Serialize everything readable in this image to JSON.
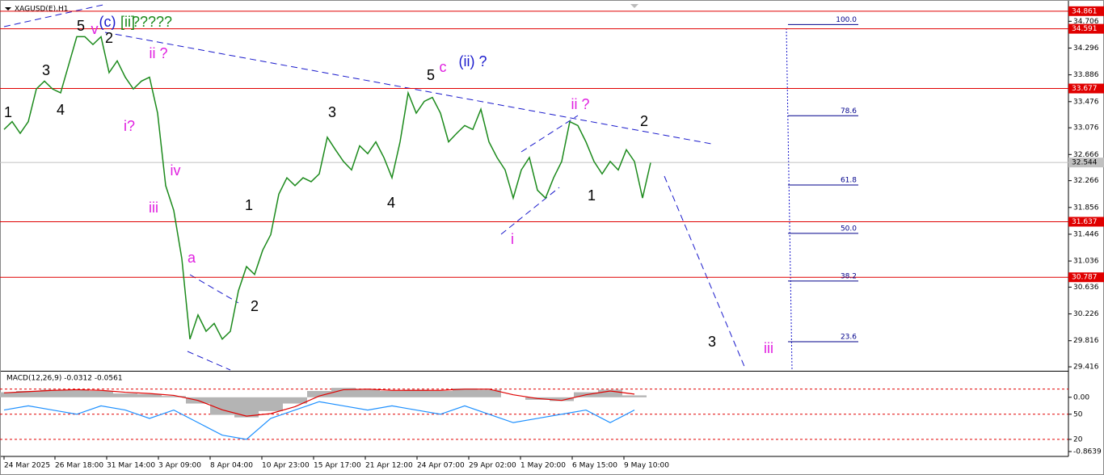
{
  "chart_data": [
    {
      "type": "line",
      "title": "XAGUSD(E),H1",
      "ylim": [
        29.38,
        34.97
      ],
      "yticks": [
        34.706,
        34.296,
        33.886,
        33.476,
        33.076,
        32.666,
        32.266,
        31.856,
        31.446,
        31.036,
        30.636,
        30.226,
        29.816,
        29.416
      ],
      "xticks": [
        {
          "value": 0,
          "label": "24 Mar 2025"
        },
        {
          "value": 6.3,
          "label": "26 Mar 18:00"
        },
        {
          "value": 12.7,
          "label": "31 Mar 14:00"
        },
        {
          "value": 19.1,
          "label": "3 Apr 09:00"
        },
        {
          "value": 25.5,
          "label": "8 Apr 04:00"
        },
        {
          "value": 31.9,
          "label": "10 Apr 23:00"
        },
        {
          "value": 38.3,
          "label": "15 Apr 17:00"
        },
        {
          "value": 44.7,
          "label": "21 Apr 12:00"
        },
        {
          "value": 51.1,
          "label": "24 Apr 07:00"
        },
        {
          "value": 57.5,
          "label": "29 Apr 02:00"
        },
        {
          "value": 63.9,
          "label": "1 May 20:00"
        },
        {
          "value": 70.3,
          "label": "6 May 15:00"
        },
        {
          "value": 76.7,
          "label": "9 May 10:00"
        }
      ],
      "series": [
        {
          "color": "#1c8a1c",
          "values": [
            33.05,
            33.17,
            32.99,
            33.17,
            33.67,
            33.79,
            33.67,
            33.61,
            34.04,
            34.47,
            34.47,
            34.35,
            34.47,
            33.92,
            34.1,
            33.85,
            33.67,
            33.79,
            33.85,
            33.3,
            32.19,
            31.81,
            31.07,
            29.84,
            30.21,
            29.96,
            30.08,
            29.84,
            29.96,
            30.58,
            30.95,
            30.83,
            31.2,
            31.44,
            32.06,
            32.31,
            32.19,
            32.31,
            32.25,
            32.37,
            32.93,
            32.74,
            32.56,
            32.43,
            32.8,
            32.68,
            32.86,
            32.62,
            32.31,
            32.86,
            33.61,
            33.3,
            33.48,
            33.54,
            33.3,
            32.86,
            32.99,
            33.11,
            33.05,
            33.36,
            32.86,
            32.62,
            32.43,
            32.0,
            32.43,
            32.62,
            32.12,
            32.0,
            32.31,
            32.56,
            33.17,
            33.11,
            32.86,
            32.56,
            32.37,
            32.56,
            32.43,
            32.74,
            32.56,
            32.0,
            32.54
          ]
        }
      ],
      "levels": {
        "color": "#e00000",
        "values": [
          34.861,
          34.591,
          33.677,
          31.637,
          30.787
        ]
      },
      "current": 32.544,
      "fib": {
        "color": "#00008b",
        "ratios": [
          {
            "value": 100,
            "label": "100.0"
          },
          78.6,
          61.8,
          {
            "value": 50,
            "label": "50.0"
          },
          38.2,
          23.6
        ],
        "prices": [
          34.656,
          33.26,
          32.2,
          31.46,
          30.73,
          29.8
        ]
      },
      "annotations": [
        {
          "text": "(c)",
          "color": "#1a1acc"
        },
        {
          "text": "[ii]",
          "color": "#1a8a1a"
        },
        {
          "text": "?????",
          "color": "#1a8a1a"
        },
        {
          "text": "1",
          "color": "#000000"
        },
        {
          "text": "3",
          "color": "#000000"
        },
        {
          "text": "4",
          "color": "#000000"
        },
        {
          "text": "5",
          "color": "#000000"
        },
        {
          "text": "v",
          "color": "#e020e0"
        },
        {
          "text": "2",
          "color": "#000000"
        },
        {
          "text": "ii ?",
          "color": "#e020e0"
        },
        {
          "text": "i?",
          "color": "#e020e0"
        },
        {
          "text": "iv",
          "color": "#e020e0"
        },
        {
          "text": "iii",
          "color": "#e020e0"
        },
        {
          "text": "a",
          "color": "#e020e0"
        },
        {
          "text": "1",
          "color": "#000000"
        },
        {
          "text": "2",
          "color": "#000000"
        },
        {
          "text": "3",
          "color": "#000000"
        },
        {
          "text": "4",
          "color": "#000000"
        },
        {
          "text": "5",
          "color": "#000000"
        },
        {
          "text": "c",
          "color": "#e020e0"
        },
        {
          "text": "(ii) ?",
          "color": "#1a1acc"
        },
        {
          "text": "ii ?",
          "color": "#e020e0"
        },
        {
          "text": "2",
          "color": "#000000"
        },
        {
          "text": "1",
          "color": "#000000"
        },
        {
          "text": "i",
          "color": "#e020e0"
        },
        {
          "text": "3",
          "color": "#000000"
        },
        {
          "text": "iii",
          "color": "#e020e0"
        }
      ]
    },
    {
      "type": "macd",
      "title": "MACD(12,26,9) -0.0312 -0.0561",
      "ylim": [
        -0.89,
        0.37
      ],
      "yticks": [
        {
          "value": 0,
          "label": "0.00"
        },
        -0.8639
      ],
      "y2lim": [
        3.5,
        98
      ],
      "y2ticks": [
        50,
        20
      ],
      "levels": [
        80,
        50,
        20
      ],
      "series": [
        {
          "color": "#b4b4b4",
          "values": [
            0.08,
            0.1,
            0.12,
            0.12,
            0.1,
            0.06,
            0.05,
            0.02,
            -0.1,
            -0.28,
            -0.32,
            -0.22,
            -0.1,
            0.1,
            0.15,
            0.12,
            0.1,
            0.12,
            0.1,
            0.14,
            0.12,
            0.0,
            -0.04,
            -0.06,
            0.08,
            0.12,
            0.03
          ]
        },
        {
          "color": "#e00000",
          "values": [
            0.07,
            0.09,
            0.11,
            0.12,
            0.11,
            0.08,
            0.06,
            0.03,
            -0.05,
            -0.2,
            -0.3,
            -0.26,
            -0.15,
            0.02,
            0.12,
            0.13,
            0.11,
            0.11,
            0.11,
            0.13,
            0.13,
            0.04,
            -0.02,
            -0.05,
            0.04,
            0.1,
            0.05
          ]
        },
        {
          "color": "#1e90ff",
          "axis": "y2",
          "values": [
            55,
            60,
            55,
            50,
            60,
            55,
            45,
            55,
            40,
            25,
            20,
            45,
            55,
            65,
            60,
            55,
            60,
            55,
            50,
            60,
            50,
            40,
            45,
            50,
            55,
            40,
            55
          ]
        }
      ]
    }
  ]
}
